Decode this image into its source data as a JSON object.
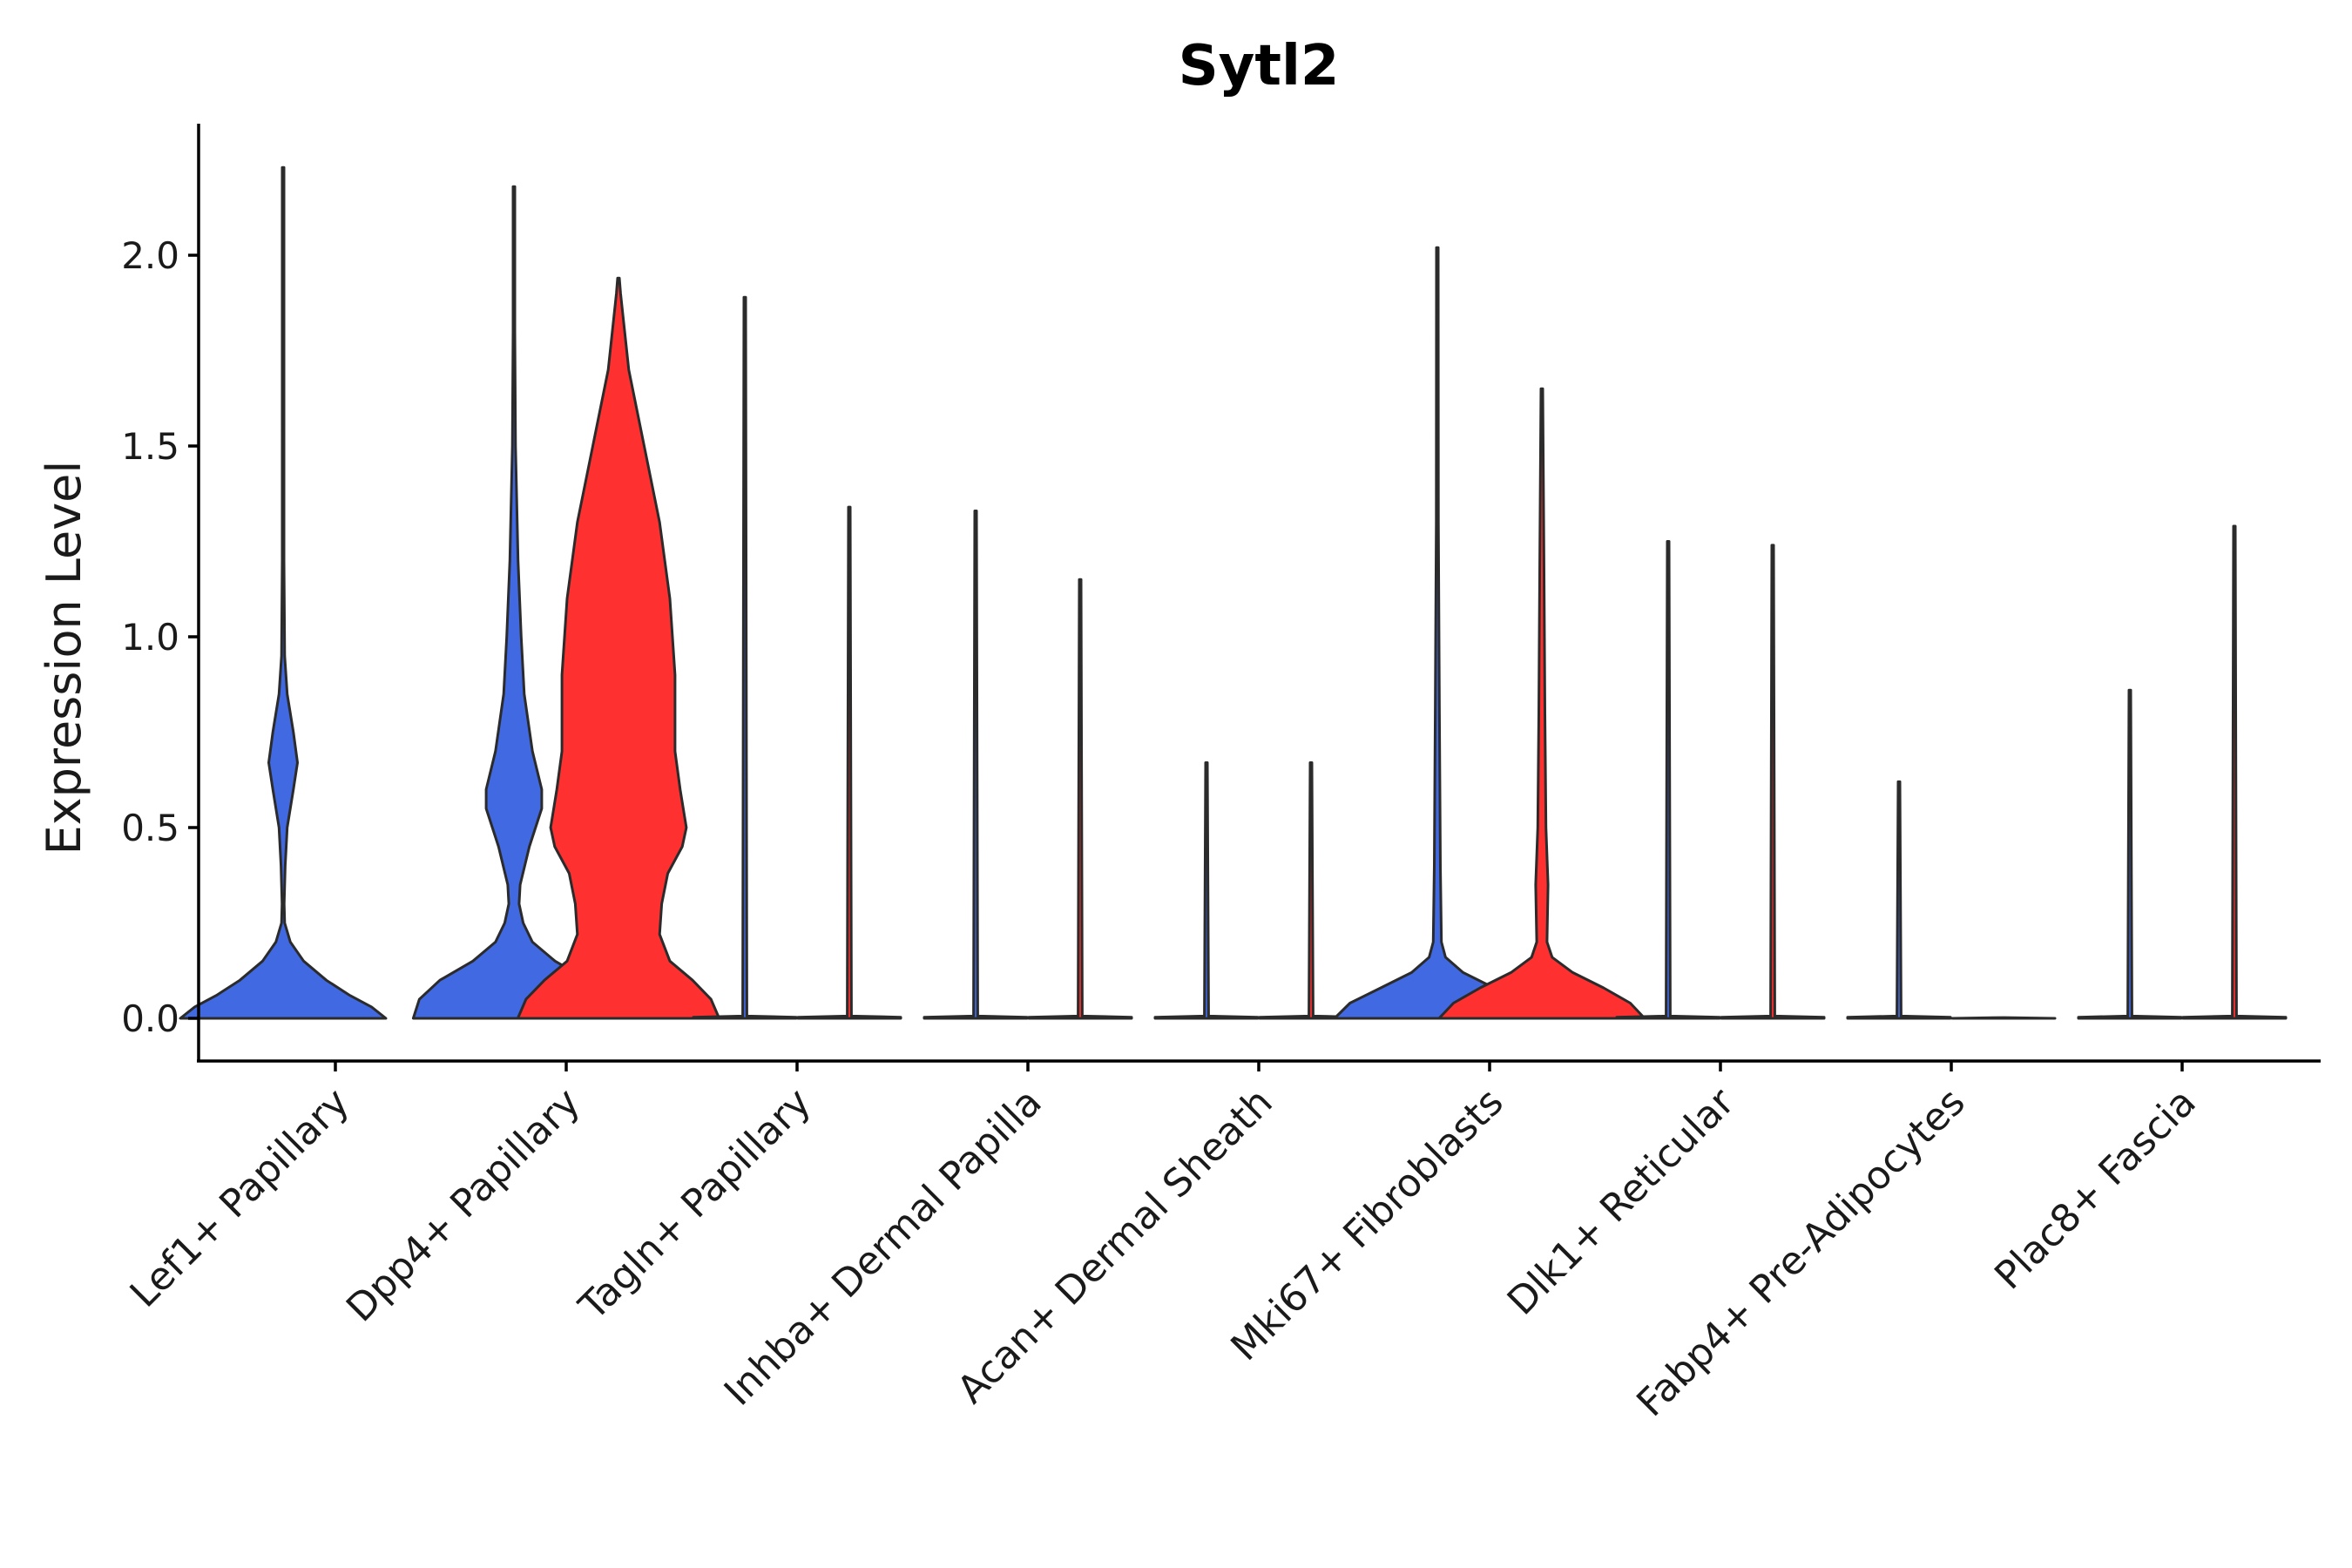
{
  "chart_data": {
    "type": "violin",
    "title": "Sytl2",
    "xlabel": "",
    "ylabel": "Expression Level",
    "ylim": [
      -0.11,
      2.35
    ],
    "yticks": [
      "0.0",
      "0.5",
      "1.0",
      "1.5",
      "2.0"
    ],
    "categories": [
      "Lef1+ Papillary",
      "Dpp4+ Papillary",
      "Tagln+ Papillary",
      "Inhba+ Dermal Papilla",
      "Acan+ Dermal Sheath",
      "Mki67+ Fibroblasts",
      "Dlk1+ Reticular",
      "Fabp4+ Pre-Adipocytes",
      "Plac8+ Fascia"
    ],
    "colors": {
      "blue": "#4169E1",
      "red": "#FF3030"
    },
    "series": [
      {
        "name": "blue",
        "color": "#4169E1"
      },
      {
        "name": "red",
        "color": "#FF3030"
      }
    ],
    "violins": [
      {
        "category": 0,
        "series": "blue",
        "max": 2.23,
        "profile": [
          [
            0.0,
            1.0
          ],
          [
            0.03,
            0.86
          ],
          [
            0.06,
            0.65
          ],
          [
            0.1,
            0.42
          ],
          [
            0.15,
            0.2
          ],
          [
            0.2,
            0.07
          ],
          [
            0.25,
            0.015
          ],
          [
            0.3,
            0.01
          ],
          [
            0.4,
            0.02
          ],
          [
            0.5,
            0.04
          ],
          [
            0.6,
            0.1
          ],
          [
            0.67,
            0.14
          ],
          [
            0.75,
            0.1
          ],
          [
            0.85,
            0.04
          ],
          [
            0.95,
            0.015
          ],
          [
            1.2,
            0.007
          ],
          [
            1.6,
            0.004
          ],
          [
            2.23,
            0.0
          ]
        ]
      },
      {
        "category": 1,
        "series": "blue",
        "max": 2.18,
        "profile": [
          [
            0.0,
            0.98
          ],
          [
            0.05,
            0.92
          ],
          [
            0.1,
            0.72
          ],
          [
            0.15,
            0.4
          ],
          [
            0.2,
            0.18
          ],
          [
            0.25,
            0.09
          ],
          [
            0.3,
            0.05
          ],
          [
            0.35,
            0.06
          ],
          [
            0.45,
            0.15
          ],
          [
            0.55,
            0.27
          ],
          [
            0.6,
            0.27
          ],
          [
            0.7,
            0.18
          ],
          [
            0.85,
            0.1
          ],
          [
            1.0,
            0.07
          ],
          [
            1.2,
            0.04
          ],
          [
            1.5,
            0.015
          ],
          [
            1.8,
            0.005
          ],
          [
            2.18,
            0.0
          ]
        ]
      },
      {
        "category": 1,
        "series": "red",
        "max": 1.94,
        "profile": [
          [
            0.0,
            0.98
          ],
          [
            0.05,
            0.9
          ],
          [
            0.1,
            0.72
          ],
          [
            0.15,
            0.5
          ],
          [
            0.22,
            0.4
          ],
          [
            0.3,
            0.42
          ],
          [
            0.38,
            0.48
          ],
          [
            0.45,
            0.62
          ],
          [
            0.5,
            0.66
          ],
          [
            0.6,
            0.6
          ],
          [
            0.7,
            0.55
          ],
          [
            0.9,
            0.55
          ],
          [
            1.1,
            0.5
          ],
          [
            1.3,
            0.4
          ],
          [
            1.5,
            0.25
          ],
          [
            1.7,
            0.1
          ],
          [
            1.9,
            0.02
          ],
          [
            1.94,
            0.0
          ]
        ]
      },
      {
        "category": 2,
        "series": "blue",
        "max": 1.89,
        "profile": [
          [
            0.0,
            0.5
          ],
          [
            0.003,
            0.5
          ],
          [
            0.006,
            0.02
          ],
          [
            1.89,
            0.0
          ]
        ]
      },
      {
        "category": 2,
        "series": "red",
        "max": 1.34,
        "profile": [
          [
            0.0,
            0.5
          ],
          [
            0.003,
            0.5
          ],
          [
            0.006,
            0.02
          ],
          [
            1.34,
            0.0
          ]
        ]
      },
      {
        "category": 3,
        "series": "blue",
        "max": 1.33,
        "profile": [
          [
            0.0,
            0.5
          ],
          [
            0.003,
            0.5
          ],
          [
            0.006,
            0.02
          ],
          [
            1.33,
            0.0
          ]
        ]
      },
      {
        "category": 3,
        "series": "red",
        "max": 1.15,
        "profile": [
          [
            0.0,
            0.5
          ],
          [
            0.003,
            0.5
          ],
          [
            0.006,
            0.02
          ],
          [
            1.15,
            0.0
          ]
        ]
      },
      {
        "category": 4,
        "series": "blue",
        "max": 0.67,
        "profile": [
          [
            0.0,
            0.5
          ],
          [
            0.003,
            0.5
          ],
          [
            0.006,
            0.02
          ],
          [
            0.67,
            0.0
          ]
        ]
      },
      {
        "category": 4,
        "series": "red",
        "max": 0.67,
        "profile": [
          [
            0.0,
            0.5
          ],
          [
            0.003,
            0.5
          ],
          [
            0.006,
            0.02
          ],
          [
            0.67,
            0.0
          ]
        ]
      },
      {
        "category": 5,
        "series": "blue",
        "max": 2.02,
        "profile": [
          [
            0.0,
            1.0
          ],
          [
            0.04,
            0.85
          ],
          [
            0.08,
            0.55
          ],
          [
            0.12,
            0.25
          ],
          [
            0.16,
            0.08
          ],
          [
            0.2,
            0.04
          ],
          [
            0.4,
            0.03
          ],
          [
            0.8,
            0.02
          ],
          [
            1.3,
            0.01
          ],
          [
            2.02,
            0.0
          ]
        ]
      },
      {
        "category": 5,
        "series": "red",
        "max": 1.65,
        "profile": [
          [
            0.0,
            1.0
          ],
          [
            0.04,
            0.86
          ],
          [
            0.08,
            0.6
          ],
          [
            0.12,
            0.3
          ],
          [
            0.16,
            0.1
          ],
          [
            0.2,
            0.05
          ],
          [
            0.35,
            0.06
          ],
          [
            0.5,
            0.04
          ],
          [
            0.8,
            0.03
          ],
          [
            1.2,
            0.02
          ],
          [
            1.65,
            0.0
          ]
        ]
      },
      {
        "category": 6,
        "series": "blue",
        "max": 1.25,
        "profile": [
          [
            0.0,
            0.5
          ],
          [
            0.003,
            0.5
          ],
          [
            0.006,
            0.02
          ],
          [
            1.25,
            0.0
          ]
        ]
      },
      {
        "category": 6,
        "series": "red",
        "max": 1.24,
        "profile": [
          [
            0.0,
            0.5
          ],
          [
            0.003,
            0.5
          ],
          [
            0.006,
            0.02
          ],
          [
            1.24,
            0.0
          ]
        ]
      },
      {
        "category": 7,
        "series": "blue",
        "max": 0.62,
        "profile": [
          [
            0.0,
            0.5
          ],
          [
            0.003,
            0.5
          ],
          [
            0.006,
            0.02
          ],
          [
            0.62,
            0.0
          ]
        ]
      },
      {
        "category": 7,
        "series": "red",
        "max": 0.0,
        "profile": [
          [
            0.0,
            0.5
          ],
          [
            0.002,
            0.0
          ]
        ]
      },
      {
        "category": 8,
        "series": "blue",
        "max": 0.86,
        "profile": [
          [
            0.0,
            0.5
          ],
          [
            0.003,
            0.5
          ],
          [
            0.006,
            0.02
          ],
          [
            0.86,
            0.0
          ]
        ]
      },
      {
        "category": 8,
        "series": "red",
        "max": 1.29,
        "profile": [
          [
            0.0,
            0.5
          ],
          [
            0.003,
            0.5
          ],
          [
            0.006,
            0.02
          ],
          [
            1.29,
            0.0
          ]
        ]
      }
    ]
  }
}
